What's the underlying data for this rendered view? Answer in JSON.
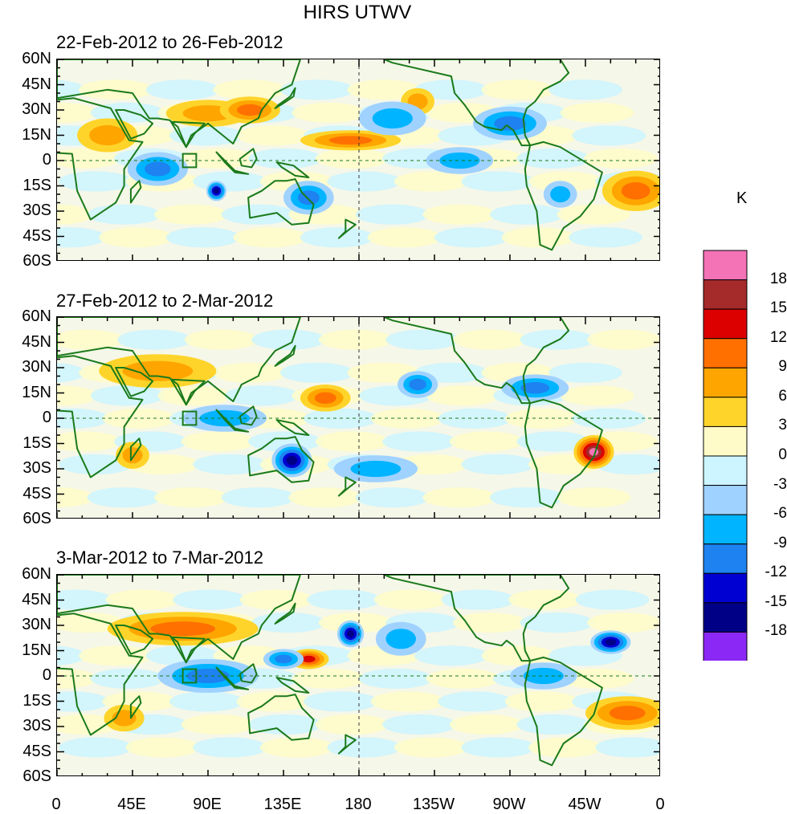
{
  "chart_data": {
    "type": "heatmap",
    "title": "HIRS UTWV",
    "units": "K",
    "x_ticks": [
      "0",
      "45E",
      "90E",
      "135E",
      "180",
      "135W",
      "90W",
      "45W",
      "0"
    ],
    "x_range": [
      0,
      360
    ],
    "y_ticks": [
      "60N",
      "45N",
      "30N",
      "15N",
      "0",
      "15S",
      "30S",
      "45S",
      "60S"
    ],
    "y_range": [
      -60,
      60
    ],
    "colorbar": {
      "levels": [
        "18",
        "15",
        "12",
        "9",
        "6",
        "3",
        "0",
        "-3",
        "-6",
        "-9",
        "-12",
        "-15",
        "-18"
      ],
      "colors": [
        "#f472b6",
        "#a52a2a",
        "#dc0000",
        "#ff7000",
        "#ffa500",
        "#ffd42a",
        "#fffbc8",
        "#cdf5ff",
        "#a0d2ff",
        "#00b4ff",
        "#1e82f0",
        "#0000d2",
        "#000087",
        "#8c28f5"
      ]
    },
    "panels": [
      {
        "period": "22-Feb-2012 to 26-Feb-2012",
        "anomalies": [
          {
            "lon": 30,
            "lat": 15,
            "value": 6,
            "rx": 18,
            "ry": 10
          },
          {
            "lon": 90,
            "lat": 28,
            "value": 6,
            "rx": 25,
            "ry": 8
          },
          {
            "lon": 115,
            "lat": 30,
            "value": 9,
            "rx": 18,
            "ry": 8
          },
          {
            "lon": 175,
            "lat": 12,
            "value": 9,
            "rx": 30,
            "ry": 6
          },
          {
            "lon": 215,
            "lat": 35,
            "value": 6,
            "rx": 10,
            "ry": 8
          },
          {
            "lon": 345,
            "lat": -18,
            "value": 9,
            "rx": 20,
            "ry": 12
          },
          {
            "lon": 60,
            "lat": -5,
            "value": -9,
            "rx": 18,
            "ry": 10
          },
          {
            "lon": 95,
            "lat": -18,
            "value": -15,
            "rx": 6,
            "ry": 6
          },
          {
            "lon": 150,
            "lat": -22,
            "value": -9,
            "rx": 15,
            "ry": 10
          },
          {
            "lon": 200,
            "lat": 25,
            "value": -6,
            "rx": 20,
            "ry": 10
          },
          {
            "lon": 270,
            "lat": 22,
            "value": -9,
            "rx": 22,
            "ry": 10
          },
          {
            "lon": 240,
            "lat": 0,
            "value": -6,
            "rx": 20,
            "ry": 8
          },
          {
            "lon": 300,
            "lat": -20,
            "value": -6,
            "rx": 10,
            "ry": 8
          }
        ]
      },
      {
        "period": "27-Feb-2012 to 2-Mar-2012",
        "anomalies": [
          {
            "lon": 60,
            "lat": 28,
            "value": 6,
            "rx": 35,
            "ry": 10
          },
          {
            "lon": 160,
            "lat": 12,
            "value": 9,
            "rx": 15,
            "ry": 8
          },
          {
            "lon": 320,
            "lat": -20,
            "value": 18,
            "rx": 12,
            "ry": 10
          },
          {
            "lon": 45,
            "lat": -22,
            "value": 6,
            "rx": 10,
            "ry": 8
          },
          {
            "lon": 140,
            "lat": -25,
            "value": -15,
            "rx": 12,
            "ry": 10
          },
          {
            "lon": 215,
            "lat": 20,
            "value": -9,
            "rx": 12,
            "ry": 8
          },
          {
            "lon": 285,
            "lat": 18,
            "value": -9,
            "rx": 20,
            "ry": 8
          },
          {
            "lon": 100,
            "lat": 0,
            "value": -6,
            "rx": 25,
            "ry": 8
          },
          {
            "lon": 190,
            "lat": -30,
            "value": -6,
            "rx": 25,
            "ry": 8
          }
        ]
      },
      {
        "period": "3-Mar-2012 to 7-Mar-2012",
        "anomalies": [
          {
            "lon": 75,
            "lat": 28,
            "value": 9,
            "rx": 45,
            "ry": 10
          },
          {
            "lon": 150,
            "lat": 10,
            "value": 12,
            "rx": 12,
            "ry": 6
          },
          {
            "lon": 340,
            "lat": -22,
            "value": 9,
            "rx": 25,
            "ry": 10
          },
          {
            "lon": 40,
            "lat": -25,
            "value": 6,
            "rx": 12,
            "ry": 8
          },
          {
            "lon": 175,
            "lat": 25,
            "value": -15,
            "rx": 8,
            "ry": 8
          },
          {
            "lon": 330,
            "lat": 20,
            "value": -15,
            "rx": 12,
            "ry": 7
          },
          {
            "lon": 90,
            "lat": 0,
            "value": -9,
            "rx": 30,
            "ry": 10
          },
          {
            "lon": 205,
            "lat": 22,
            "value": -6,
            "rx": 15,
            "ry": 10
          },
          {
            "lon": 135,
            "lat": 10,
            "value": -9,
            "rx": 12,
            "ry": 6
          },
          {
            "lon": 290,
            "lat": 0,
            "value": -6,
            "rx": 20,
            "ry": 8
          }
        ]
      }
    ]
  }
}
